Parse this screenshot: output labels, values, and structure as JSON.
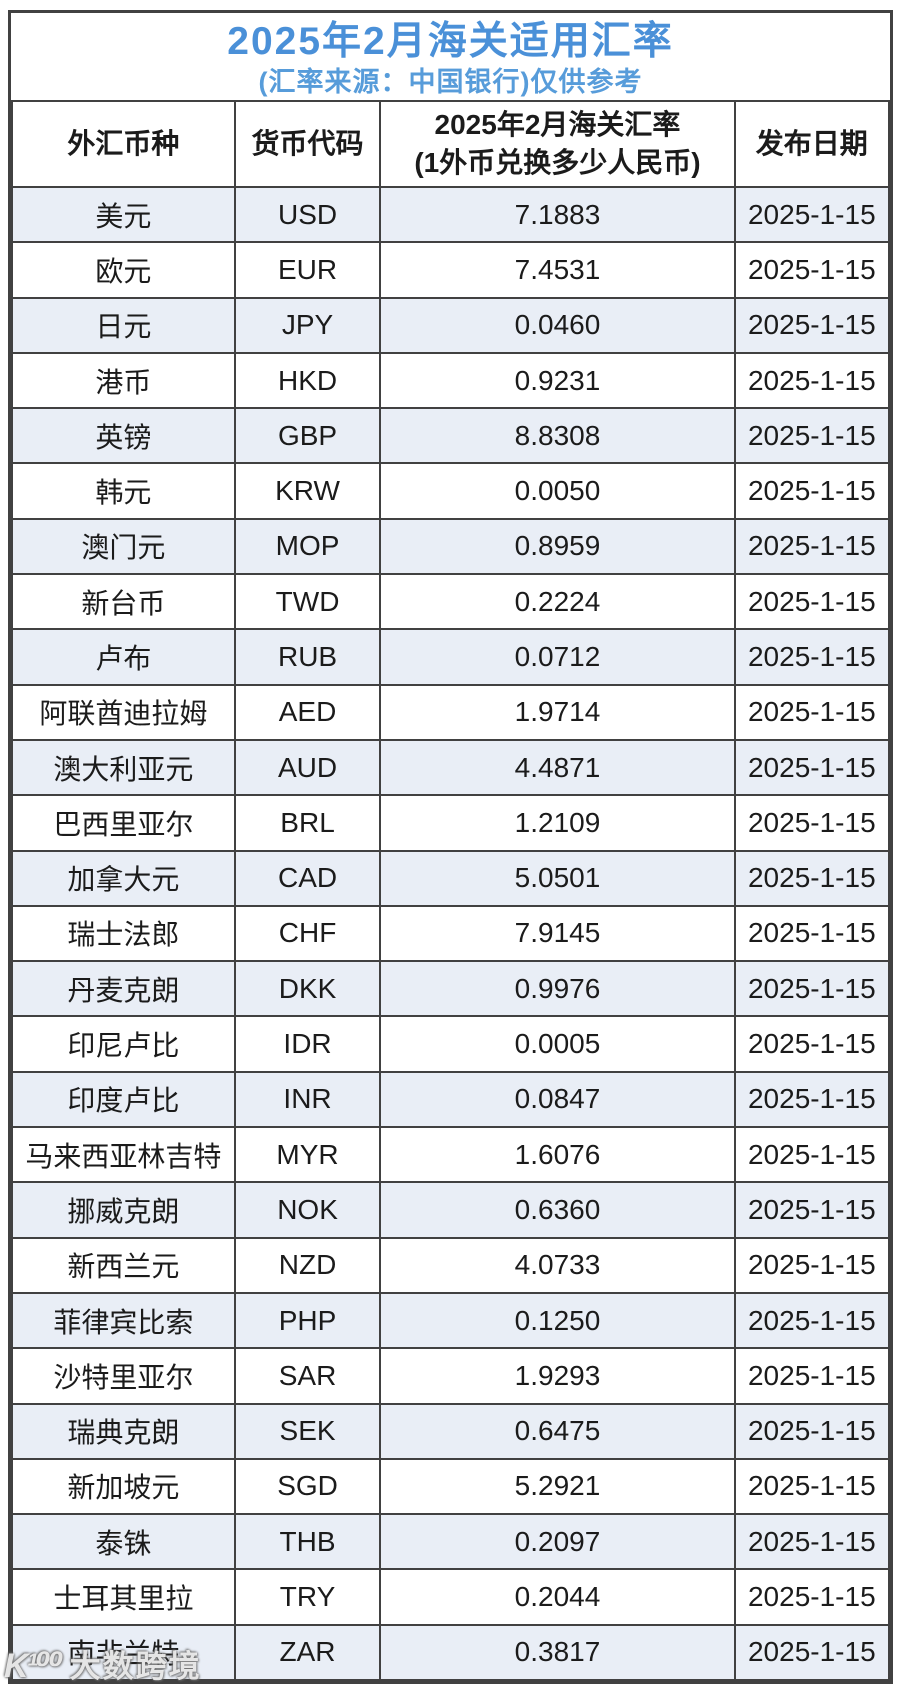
{
  "colors": {
    "accent": "#4a90d8",
    "accent_light": "#579cda",
    "row_alt": "#e9eef6",
    "grid": "#414141",
    "text": "#1b1b1b"
  },
  "chart_data": {
    "type": "table",
    "title": "2025年2月海关适用汇率",
    "subtitle": "(汇率来源：中国银行)仅供参考",
    "columns": [
      "外汇币种",
      "货币代码",
      "2025年2月海关汇率\n(1外币兑换多少人民币)",
      "发布日期"
    ],
    "rows": [
      [
        "美元",
        "USD",
        "7.1883",
        "2025-1-15"
      ],
      [
        "欧元",
        "EUR",
        "7.4531",
        "2025-1-15"
      ],
      [
        "日元",
        "JPY",
        "0.0460",
        "2025-1-15"
      ],
      [
        "港币",
        "HKD",
        "0.9231",
        "2025-1-15"
      ],
      [
        "英镑",
        "GBP",
        "8.8308",
        "2025-1-15"
      ],
      [
        "韩元",
        "KRW",
        "0.0050",
        "2025-1-15"
      ],
      [
        "澳门元",
        "MOP",
        "0.8959",
        "2025-1-15"
      ],
      [
        "新台币",
        "TWD",
        "0.2224",
        "2025-1-15"
      ],
      [
        "卢布",
        "RUB",
        "0.0712",
        "2025-1-15"
      ],
      [
        "阿联酋迪拉姆",
        "AED",
        "1.9714",
        "2025-1-15"
      ],
      [
        "澳大利亚元",
        "AUD",
        "4.4871",
        "2025-1-15"
      ],
      [
        "巴西里亚尔",
        "BRL",
        "1.2109",
        "2025-1-15"
      ],
      [
        "加拿大元",
        "CAD",
        "5.0501",
        "2025-1-15"
      ],
      [
        "瑞士法郎",
        "CHF",
        "7.9145",
        "2025-1-15"
      ],
      [
        "丹麦克朗",
        "DKK",
        "0.9976",
        "2025-1-15"
      ],
      [
        "印尼卢比",
        "IDR",
        "0.0005",
        "2025-1-15"
      ],
      [
        "印度卢比",
        "INR",
        "0.0847",
        "2025-1-15"
      ],
      [
        "马来西亚林吉特",
        "MYR",
        "1.6076",
        "2025-1-15"
      ],
      [
        "挪威克朗",
        "NOK",
        "0.6360",
        "2025-1-15"
      ],
      [
        "新西兰元",
        "NZD",
        "4.0733",
        "2025-1-15"
      ],
      [
        "菲律宾比索",
        "PHP",
        "0.1250",
        "2025-1-15"
      ],
      [
        "沙特里亚尔",
        "SAR",
        "1.9293",
        "2025-1-15"
      ],
      [
        "瑞典克朗",
        "SEK",
        "0.6475",
        "2025-1-15"
      ],
      [
        "新加坡元",
        "SGD",
        "5.2921",
        "2025-1-15"
      ],
      [
        "泰铢",
        "THB",
        "0.2097",
        "2025-1-15"
      ],
      [
        "士耳其里拉",
        "TRY",
        "0.2044",
        "2025-1-15"
      ],
      [
        "南非兰特",
        "ZAR",
        "0.3817",
        "2025-1-15"
      ]
    ]
  },
  "watermark": {
    "logo": "K¹⁰⁰",
    "text": "大数跨境"
  }
}
